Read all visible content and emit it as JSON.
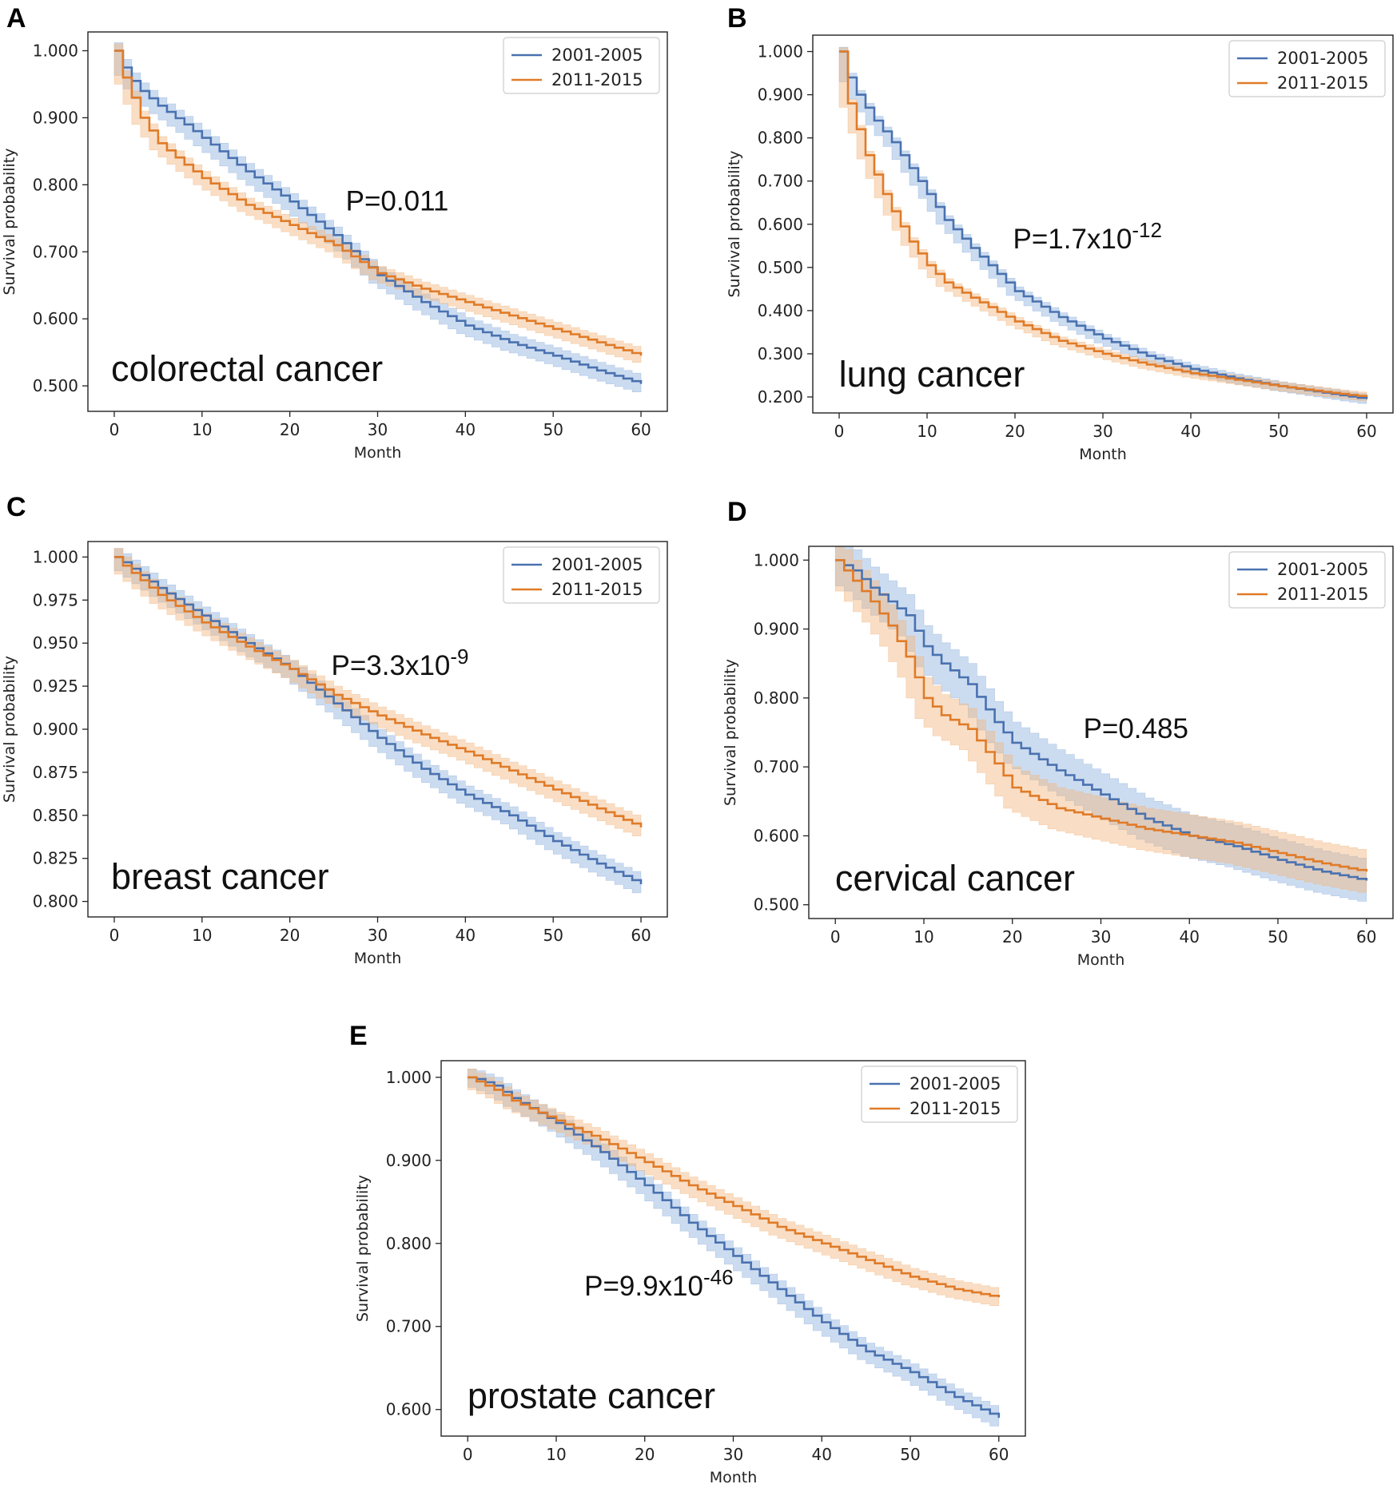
{
  "colors": {
    "series1": "#4a72b0",
    "series2": "#e07b28",
    "band1": "#8fb1dd",
    "band2": "#f1b67f"
  },
  "chart_data": [
    {
      "panel": "A",
      "type": "line",
      "annotation": "colorectal cancer",
      "pvalue_base": "P=0.011",
      "pvalue_exp": "",
      "xlabel": "Month",
      "ylabel": "Survival probability",
      "xlim": [
        -3,
        63
      ],
      "ylim": [
        0.462,
        1.028
      ],
      "xticks": [
        0,
        10,
        20,
        30,
        40,
        50,
        60
      ],
      "yticks": [
        0.5,
        0.6,
        0.7,
        0.8,
        0.9,
        1.0
      ],
      "ytick_labels": [
        "0.500",
        "0.600",
        "0.700",
        "0.800",
        "0.900",
        "1.000"
      ],
      "legend_position": "top-right",
      "grid": false,
      "series": [
        {
          "name": "2001-2005",
          "x": [
            0,
            1,
            2,
            3,
            5,
            8,
            10,
            15,
            20,
            25,
            30,
            35,
            40,
            45,
            50,
            55,
            60
          ],
          "y": [
            1.0,
            0.975,
            0.955,
            0.94,
            0.918,
            0.89,
            0.87,
            0.82,
            0.775,
            0.725,
            0.665,
            0.625,
            0.59,
            0.565,
            0.545,
            0.523,
            0.503
          ],
          "band": 0.012
        },
        {
          "name": "2011-2015",
          "x": [
            0,
            1,
            2,
            3,
            5,
            8,
            10,
            15,
            20,
            25,
            30,
            35,
            40,
            45,
            50,
            55,
            60
          ],
          "y": [
            1.0,
            0.96,
            0.93,
            0.9,
            0.862,
            0.83,
            0.81,
            0.77,
            0.74,
            0.71,
            0.668,
            0.645,
            0.625,
            0.605,
            0.585,
            0.565,
            0.545
          ],
          "band": 0.01
        }
      ]
    },
    {
      "panel": "B",
      "type": "line",
      "annotation": "lung cancer",
      "pvalue_base": "P=1.7x10",
      "pvalue_exp": "-12",
      "xlabel": "Month",
      "ylabel": "Survival probability",
      "xlim": [
        -3,
        63
      ],
      "ylim": [
        0.163,
        1.038
      ],
      "xticks": [
        0,
        10,
        20,
        30,
        40,
        50,
        60
      ],
      "yticks": [
        0.2,
        0.3,
        0.4,
        0.5,
        0.6,
        0.7,
        0.8,
        0.9,
        1.0
      ],
      "ytick_labels": [
        "0.200",
        "0.300",
        "0.400",
        "0.500",
        "0.600",
        "0.700",
        "0.800",
        "0.900",
        "1.000"
      ],
      "legend_position": "top-right",
      "grid": false,
      "series": [
        {
          "name": "2001-2005",
          "x": [
            0,
            1,
            2,
            3,
            4,
            5,
            6,
            8,
            10,
            12,
            15,
            20,
            25,
            30,
            35,
            40,
            45,
            50,
            55,
            60
          ],
          "y": [
            1.0,
            0.94,
            0.9,
            0.87,
            0.84,
            0.815,
            0.79,
            0.73,
            0.67,
            0.61,
            0.545,
            0.445,
            0.385,
            0.335,
            0.295,
            0.265,
            0.243,
            0.225,
            0.21,
            0.195
          ],
          "band": 0.01
        },
        {
          "name": "2011-2015",
          "x": [
            0,
            1,
            2,
            3,
            4,
            5,
            6,
            8,
            10,
            12,
            15,
            20,
            25,
            30,
            35,
            40,
            45,
            50,
            55,
            60
          ],
          "y": [
            1.0,
            0.88,
            0.82,
            0.76,
            0.715,
            0.67,
            0.63,
            0.56,
            0.505,
            0.465,
            0.43,
            0.375,
            0.33,
            0.3,
            0.275,
            0.255,
            0.24,
            0.225,
            0.212,
            0.2
          ],
          "band": 0.009
        }
      ]
    },
    {
      "panel": "C",
      "type": "line",
      "annotation": "breast cancer",
      "pvalue_base": "P=3.3x10",
      "pvalue_exp": "-9",
      "xlabel": "Month",
      "ylabel": "Survival probability",
      "xlim": [
        -3,
        63
      ],
      "ylim": [
        0.791,
        1.009
      ],
      "xticks": [
        0,
        10,
        20,
        30,
        40,
        50,
        60
      ],
      "yticks": [
        0.8,
        0.825,
        0.85,
        0.875,
        0.9,
        0.925,
        0.95,
        0.975,
        1.0
      ],
      "ytick_labels": [
        "0.800",
        "0.825",
        "0.850",
        "0.875",
        "0.900",
        "0.925",
        "0.950",
        "0.975",
        "1.000"
      ],
      "legend_position": "top-right",
      "grid": false,
      "series": [
        {
          "name": "2001-2005",
          "x": [
            0,
            1,
            5,
            10,
            15,
            20,
            25,
            30,
            35,
            40,
            45,
            50,
            55,
            60
          ],
          "y": [
            1.0,
            0.997,
            0.982,
            0.966,
            0.95,
            0.935,
            0.915,
            0.895,
            0.877,
            0.862,
            0.85,
            0.835,
            0.822,
            0.81
          ],
          "band": 0.005
        },
        {
          "name": "2011-2015",
          "x": [
            0,
            1,
            5,
            10,
            15,
            20,
            25,
            30,
            35,
            40,
            45,
            50,
            55,
            60
          ],
          "y": [
            1.0,
            0.995,
            0.978,
            0.962,
            0.948,
            0.935,
            0.92,
            0.908,
            0.897,
            0.887,
            0.876,
            0.865,
            0.854,
            0.843
          ],
          "band": 0.005
        }
      ]
    },
    {
      "panel": "D",
      "type": "line",
      "annotation": "cervical cancer",
      "pvalue_base": "P=0.485",
      "pvalue_exp": "",
      "xlabel": "Month",
      "ylabel": "Survival probability",
      "xlim": [
        -3,
        63
      ],
      "ylim": [
        0.48,
        1.02
      ],
      "xticks": [
        0,
        10,
        20,
        30,
        40,
        50,
        60
      ],
      "yticks": [
        0.5,
        0.6,
        0.7,
        0.8,
        0.9,
        1.0
      ],
      "ytick_labels": [
        "0.500",
        "0.600",
        "0.700",
        "0.800",
        "0.900",
        "1.000"
      ],
      "legend_position": "top-right",
      "grid": false,
      "series": [
        {
          "name": "2001-2005",
          "x": [
            0,
            2,
            4,
            6,
            8,
            10,
            12,
            15,
            18,
            20,
            25,
            30,
            35,
            40,
            45,
            50,
            55,
            60
          ],
          "y": [
            1.0,
            0.985,
            0.96,
            0.94,
            0.92,
            0.875,
            0.85,
            0.82,
            0.765,
            0.735,
            0.695,
            0.66,
            0.625,
            0.6,
            0.585,
            0.565,
            0.548,
            0.535
          ],
          "band": 0.03
        },
        {
          "name": "2011-2015",
          "x": [
            0,
            2,
            4,
            6,
            8,
            10,
            12,
            15,
            18,
            20,
            25,
            30,
            35,
            40,
            45,
            50,
            55,
            60
          ],
          "y": [
            1.0,
            0.97,
            0.94,
            0.905,
            0.86,
            0.8,
            0.775,
            0.755,
            0.705,
            0.67,
            0.64,
            0.625,
            0.61,
            0.6,
            0.59,
            0.575,
            0.56,
            0.548
          ],
          "band": 0.03
        }
      ]
    },
    {
      "panel": "E",
      "type": "line",
      "annotation": "prostate cancer",
      "pvalue_base": "P=9.9x10",
      "pvalue_exp": "-46",
      "xlabel": "Month",
      "ylabel": "Survival probability",
      "xlim": [
        -3,
        63
      ],
      "ylim": [
        0.568,
        1.02
      ],
      "xticks": [
        0,
        10,
        20,
        30,
        40,
        50,
        60
      ],
      "yticks": [
        0.6,
        0.7,
        0.8,
        0.9,
        1.0
      ],
      "ytick_labels": [
        "0.600",
        "0.700",
        "0.800",
        "0.900",
        "1.000"
      ],
      "legend_position": "top-right",
      "grid": false,
      "series": [
        {
          "name": "2001-2005",
          "x": [
            0,
            1,
            3,
            5,
            10,
            15,
            20,
            25,
            30,
            35,
            40,
            45,
            50,
            55,
            60
          ],
          "y": [
            1.0,
            0.998,
            0.99,
            0.975,
            0.945,
            0.91,
            0.87,
            0.825,
            0.785,
            0.745,
            0.705,
            0.67,
            0.645,
            0.615,
            0.59
          ],
          "band": 0.01
        },
        {
          "name": "2011-2015",
          "x": [
            0,
            1,
            3,
            5,
            10,
            15,
            20,
            25,
            30,
            35,
            40,
            45,
            50,
            55,
            60
          ],
          "y": [
            1.0,
            0.995,
            0.985,
            0.972,
            0.948,
            0.925,
            0.898,
            0.87,
            0.845,
            0.82,
            0.8,
            0.78,
            0.76,
            0.745,
            0.735
          ],
          "band": 0.01
        }
      ]
    }
  ]
}
